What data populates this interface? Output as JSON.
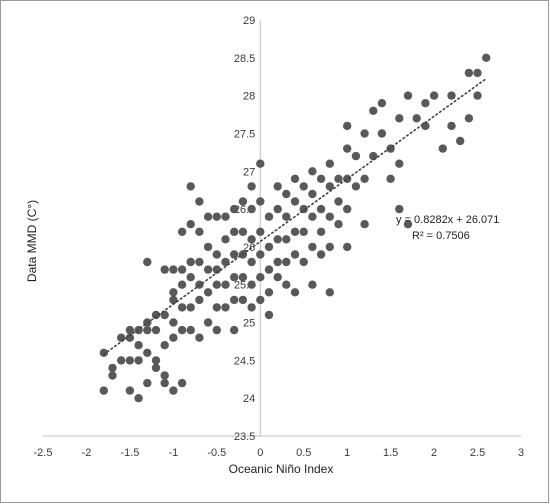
{
  "chart_data": {
    "type": "scatter",
    "title": "",
    "xlabel": "Oceanic Niño Index",
    "ylabel": "Data MMD (C°)",
    "xlim": [
      -2.5,
      3
    ],
    "ylim": [
      23.5,
      29
    ],
    "x_ticks": [
      -2.5,
      -2,
      -1.5,
      -1,
      -0.5,
      0,
      0.5,
      1,
      1.5,
      2,
      2.5,
      3
    ],
    "y_ticks": [
      23.5,
      24,
      24.5,
      25,
      25.5,
      26,
      26.5,
      27,
      27.5,
      28,
      28.5,
      29
    ],
    "x_tick_labels": [
      "-2.5",
      "-2",
      "-1.5",
      "-1",
      "-0.5",
      "0",
      "0.5",
      "1",
      "1.5",
      "2",
      "2.5",
      "3"
    ],
    "y_tick_labels": [
      "23.5",
      "24",
      "24.5",
      "25",
      "25.5",
      "26",
      "26.5",
      "27",
      "27.5",
      "28",
      "28.5",
      "29"
    ],
    "grid": false,
    "legend": "none",
    "marker_color": "#595959",
    "trendline": {
      "style": "dotted",
      "slope": 0.8282,
      "intercept": 26.071,
      "x_range": [
        -1.8,
        2.6
      ],
      "equation": "y = 0.8282x + 26.071",
      "r_squared": "R² = 0.7506"
    },
    "points": [
      [
        -1.8,
        24.6
      ],
      [
        -1.8,
        24.1
      ],
      [
        -1.7,
        24.4
      ],
      [
        -1.7,
        24.3
      ],
      [
        -1.6,
        24.8
      ],
      [
        -1.6,
        24.5
      ],
      [
        -1.5,
        24.9
      ],
      [
        -1.5,
        24.8
      ],
      [
        -1.5,
        24.5
      ],
      [
        -1.5,
        24.1
      ],
      [
        -1.4,
        24.9
      ],
      [
        -1.4,
        24.7
      ],
      [
        -1.4,
        24.5
      ],
      [
        -1.4,
        24.0
      ],
      [
        -1.3,
        25.8
      ],
      [
        -1.3,
        25.0
      ],
      [
        -1.3,
        24.9
      ],
      [
        -1.3,
        24.6
      ],
      [
        -1.3,
        24.2
      ],
      [
        -1.2,
        25.1
      ],
      [
        -1.2,
        24.9
      ],
      [
        -1.2,
        24.5
      ],
      [
        -1.2,
        24.4
      ],
      [
        -1.1,
        25.7
      ],
      [
        -1.1,
        25.1
      ],
      [
        -1.1,
        24.7
      ],
      [
        -1.1,
        24.3
      ],
      [
        -1.1,
        24.2
      ],
      [
        -1.0,
        25.7
      ],
      [
        -1.0,
        25.4
      ],
      [
        -1.0,
        25.3
      ],
      [
        -1.0,
        25.0
      ],
      [
        -1.0,
        24.8
      ],
      [
        -1.0,
        24.1
      ],
      [
        -0.9,
        26.2
      ],
      [
        -0.9,
        25.7
      ],
      [
        -0.9,
        25.5
      ],
      [
        -0.9,
        25.2
      ],
      [
        -0.9,
        24.9
      ],
      [
        -0.9,
        24.2
      ],
      [
        -0.8,
        26.8
      ],
      [
        -0.8,
        26.3
      ],
      [
        -0.8,
        25.8
      ],
      [
        -0.8,
        25.6
      ],
      [
        -0.8,
        25.2
      ],
      [
        -0.8,
        24.9
      ],
      [
        -0.7,
        26.6
      ],
      [
        -0.7,
        26.2
      ],
      [
        -0.7,
        25.8
      ],
      [
        -0.7,
        25.5
      ],
      [
        -0.7,
        25.3
      ],
      [
        -0.7,
        24.8
      ],
      [
        -0.6,
        26.4
      ],
      [
        -0.6,
        26.0
      ],
      [
        -0.6,
        25.7
      ],
      [
        -0.6,
        25.4
      ],
      [
        -0.6,
        25.0
      ],
      [
        -0.5,
        26.4
      ],
      [
        -0.5,
        25.9
      ],
      [
        -0.5,
        25.7
      ],
      [
        -0.5,
        25.5
      ],
      [
        -0.5,
        25.2
      ],
      [
        -0.5,
        24.9
      ],
      [
        -0.4,
        26.4
      ],
      [
        -0.4,
        26.1
      ],
      [
        -0.4,
        25.8
      ],
      [
        -0.4,
        25.5
      ],
      [
        -0.4,
        25.2
      ],
      [
        -0.3,
        26.5
      ],
      [
        -0.3,
        26.2
      ],
      [
        -0.3,
        25.9
      ],
      [
        -0.3,
        25.6
      ],
      [
        -0.3,
        25.3
      ],
      [
        -0.3,
        24.9
      ],
      [
        -0.2,
        26.6
      ],
      [
        -0.2,
        26.2
      ],
      [
        -0.2,
        25.9
      ],
      [
        -0.2,
        25.6
      ],
      [
        -0.2,
        25.3
      ],
      [
        -0.1,
        26.8
      ],
      [
        -0.1,
        26.5
      ],
      [
        -0.1,
        26.1
      ],
      [
        -0.1,
        25.8
      ],
      [
        -0.1,
        25.5
      ],
      [
        -0.1,
        25.2
      ],
      [
        0.0,
        27.1
      ],
      [
        0.0,
        26.6
      ],
      [
        0.0,
        26.2
      ],
      [
        0.0,
        25.9
      ],
      [
        0.0,
        25.6
      ],
      [
        0.0,
        25.3
      ],
      [
        0.1,
        26.4
      ],
      [
        0.1,
        26.0
      ],
      [
        0.1,
        25.7
      ],
      [
        0.1,
        25.4
      ],
      [
        0.1,
        25.1
      ],
      [
        0.2,
        26.8
      ],
      [
        0.2,
        26.5
      ],
      [
        0.2,
        26.1
      ],
      [
        0.2,
        25.8
      ],
      [
        0.2,
        25.6
      ],
      [
        0.3,
        26.7
      ],
      [
        0.3,
        26.4
      ],
      [
        0.3,
        26.1
      ],
      [
        0.3,
        25.8
      ],
      [
        0.3,
        25.5
      ],
      [
        0.4,
        26.9
      ],
      [
        0.4,
        26.6
      ],
      [
        0.4,
        26.2
      ],
      [
        0.4,
        25.9
      ],
      [
        0.4,
        25.4
      ],
      [
        0.5,
        26.8
      ],
      [
        0.5,
        26.5
      ],
      [
        0.5,
        26.2
      ],
      [
        0.5,
        25.8
      ],
      [
        0.6,
        27.0
      ],
      [
        0.6,
        26.7
      ],
      [
        0.6,
        26.4
      ],
      [
        0.6,
        26.0
      ],
      [
        0.6,
        25.5
      ],
      [
        0.7,
        26.9
      ],
      [
        0.7,
        26.5
      ],
      [
        0.7,
        26.2
      ],
      [
        0.7,
        25.9
      ],
      [
        0.8,
        27.1
      ],
      [
        0.8,
        26.8
      ],
      [
        0.8,
        26.4
      ],
      [
        0.8,
        26.0
      ],
      [
        0.8,
        25.4
      ],
      [
        0.9,
        26.9
      ],
      [
        0.9,
        26.6
      ],
      [
        0.9,
        26.3
      ],
      [
        1.0,
        27.6
      ],
      [
        1.0,
        27.3
      ],
      [
        1.0,
        26.9
      ],
      [
        1.0,
        26.5
      ],
      [
        1.0,
        26.0
      ],
      [
        1.1,
        27.2
      ],
      [
        1.1,
        26.8
      ],
      [
        1.2,
        27.5
      ],
      [
        1.2,
        26.9
      ],
      [
        1.2,
        26.3
      ],
      [
        1.3,
        27.8
      ],
      [
        1.3,
        27.2
      ],
      [
        1.4,
        27.9
      ],
      [
        1.4,
        27.5
      ],
      [
        1.5,
        27.3
      ],
      [
        1.5,
        26.9
      ],
      [
        1.6,
        27.7
      ],
      [
        1.6,
        27.1
      ],
      [
        1.6,
        26.5
      ],
      [
        1.7,
        28.0
      ],
      [
        1.7,
        26.3
      ],
      [
        1.8,
        27.7
      ],
      [
        1.9,
        27.9
      ],
      [
        1.9,
        27.6
      ],
      [
        2.0,
        28.0
      ],
      [
        2.1,
        27.3
      ],
      [
        2.2,
        28.0
      ],
      [
        2.2,
        27.6
      ],
      [
        2.3,
        27.4
      ],
      [
        2.4,
        28.3
      ],
      [
        2.4,
        27.7
      ],
      [
        2.5,
        28.3
      ],
      [
        2.5,
        28.0
      ],
      [
        2.6,
        28.5
      ]
    ]
  }
}
